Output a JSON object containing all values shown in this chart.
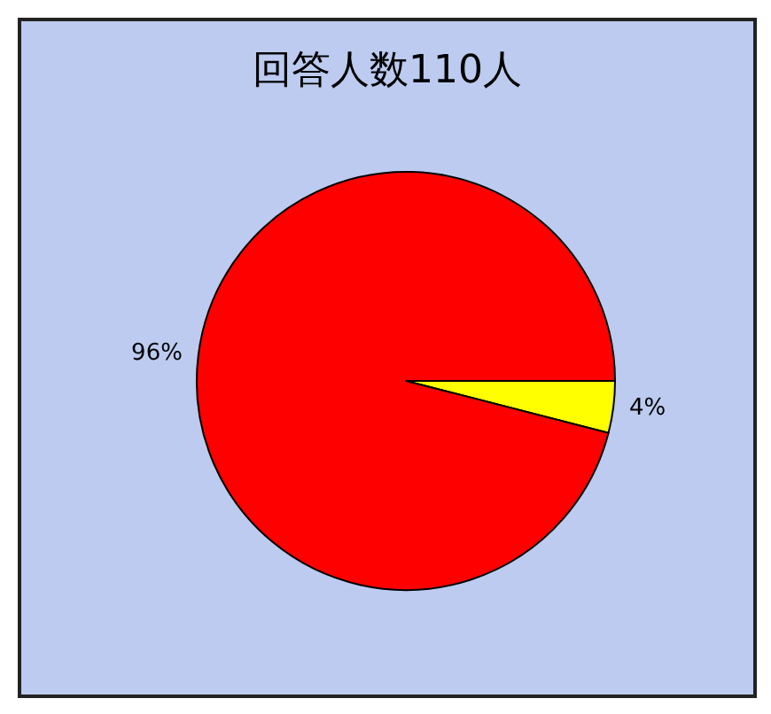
{
  "chart_data": {
    "type": "pie",
    "title": "回答人数110人",
    "categories": [
      null,
      null
    ],
    "values": [
      4,
      96
    ],
    "colors": [
      "#ffff00",
      "#ff0000"
    ],
    "value_labels": [
      "4%",
      "96%"
    ]
  }
}
